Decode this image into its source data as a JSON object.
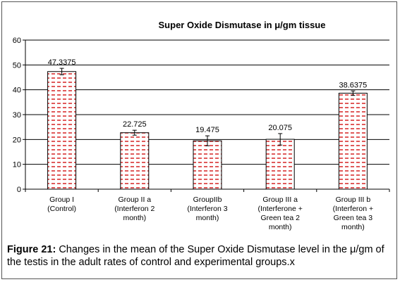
{
  "chart_data": {
    "type": "bar",
    "title": "Super Oxide Dismutase in μ/gm tissue",
    "categories": [
      [
        "Group I",
        "(Control)"
      ],
      [
        "Group II a",
        "(Interferon 2",
        "month)"
      ],
      [
        "GroupIIb",
        "(Interferon 3",
        "month)"
      ],
      [
        "Group III a",
        "(Interferone +",
        "Green tea 2",
        "month)"
      ],
      [
        "Group III  b",
        "(Interferon +",
        "Green tea 3",
        "month)"
      ]
    ],
    "values": [
      47.3375,
      22.725,
      19.475,
      20.075,
      38.6375
    ],
    "data_labels": [
      "47.3375",
      "22.725",
      "19.475",
      "20.075",
      "38.6375"
    ],
    "error": [
      1.3,
      1.0,
      2.0,
      2.3,
      0.9
    ],
    "ylim": [
      0,
      60
    ],
    "yticks": [
      "0",
      "10",
      "20",
      "30",
      "40",
      "50",
      "60"
    ],
    "grid": true,
    "bar_color": "#e05a5a",
    "xlabel": "",
    "ylabel": ""
  },
  "caption": {
    "label": "Figure 21:",
    "text": " Changes in the mean of the Super Oxide Dismutase level in the μ/gm of the testis in the adult rates of control and experimental groups.x"
  }
}
